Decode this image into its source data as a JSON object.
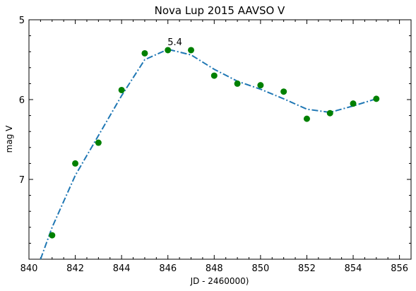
{
  "chart_data": {
    "type": "scatter",
    "title": "Nova Lup 2015 AAVSO V",
    "xlabel": "JD - 2460000)",
    "ylabel": "mag V",
    "xlim": [
      840,
      856.5
    ],
    "ylim": [
      8.0,
      5.0
    ],
    "y_inverted": true,
    "x_ticks": [
      840,
      842,
      844,
      846,
      848,
      850,
      852,
      854,
      856
    ],
    "y_ticks": [
      5,
      6,
      7
    ],
    "grid": false,
    "legend": "none",
    "points": {
      "color": "#008000",
      "x": [
        841,
        842,
        843,
        844,
        845,
        846,
        847,
        848,
        849,
        850,
        851,
        852,
        853,
        854,
        855
      ],
      "y": [
        7.7,
        6.8,
        6.54,
        5.88,
        5.42,
        5.38,
        5.38,
        5.7,
        5.8,
        5.82,
        5.9,
        6.24,
        6.17,
        6.05,
        5.99
      ]
    },
    "fit_line": {
      "color": "#1f77b4",
      "style": "dashdot",
      "x": [
        840.5,
        841,
        842,
        843,
        844,
        845,
        846,
        847,
        848,
        849,
        850,
        851,
        852,
        853,
        854,
        855
      ],
      "y": [
        8.0,
        7.6,
        6.95,
        6.45,
        5.95,
        5.5,
        5.37,
        5.44,
        5.62,
        5.77,
        5.87,
        5.99,
        6.12,
        6.16,
        6.08,
        5.99
      ]
    },
    "annotations": [
      {
        "text": "5.4",
        "x": 846.3,
        "y": 5.32
      }
    ]
  }
}
